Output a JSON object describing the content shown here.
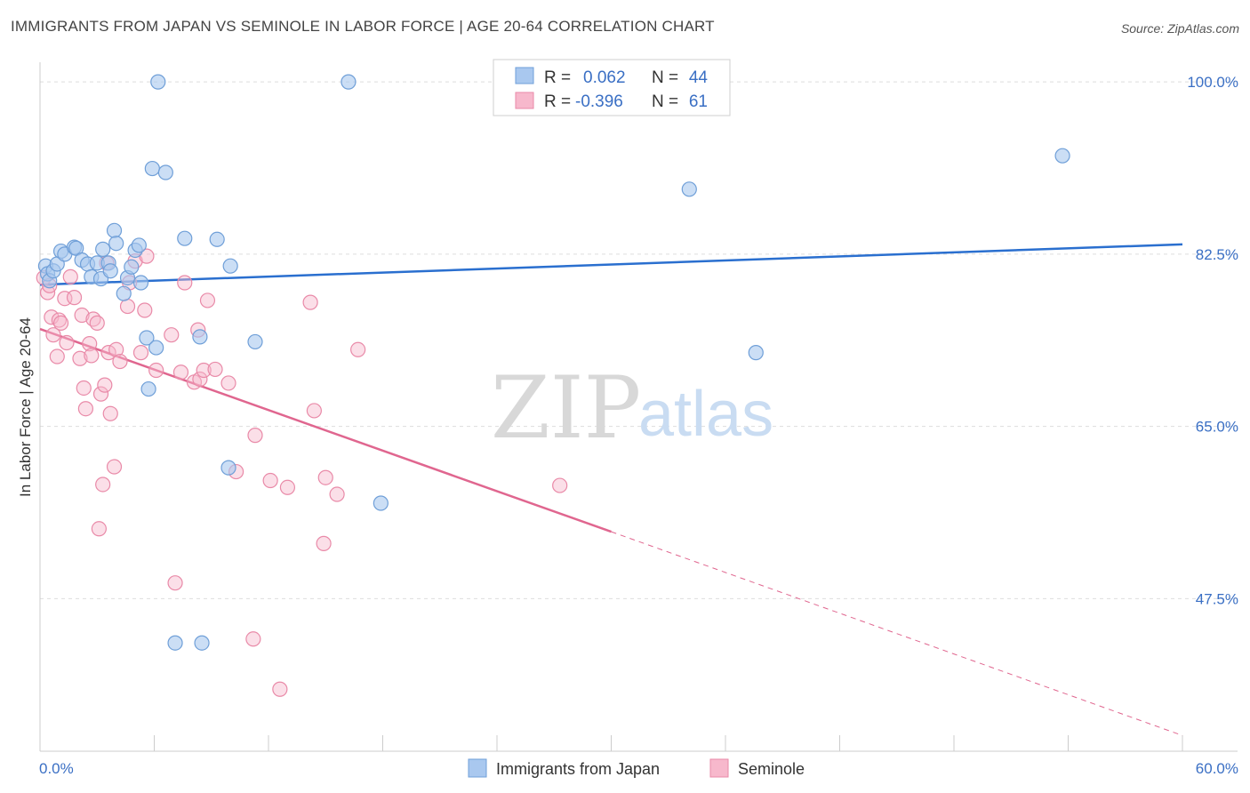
{
  "title": "IMMIGRANTS FROM JAPAN VS SEMINOLE IN LABOR FORCE | AGE 20-64 CORRELATION CHART",
  "source": "Source: ZipAtlas.com",
  "watermark": {
    "zip": "ZIP",
    "atlas": "atlas"
  },
  "colors": {
    "japan_fill": "#a9c8ef",
    "japan_stroke": "#6f9fd8",
    "japan_line": "#2a6fcf",
    "seminole_fill": "#f7b8cc",
    "seminole_stroke": "#e98aa8",
    "seminole_line": "#e0668f",
    "tick_text": "#3a6fc4",
    "grid": "#dddddd"
  },
  "legend": {
    "r_label": "R =",
    "n_label": "N =",
    "japan_r": "0.062",
    "japan_n": "44",
    "seminole_r": "-0.396",
    "seminole_n": "61"
  },
  "chart_data": {
    "type": "scatter",
    "title": "IMMIGRANTS FROM JAPAN VS SEMINOLE IN LABOR FORCE | AGE 20-64 CORRELATION CHART",
    "xlabel": "",
    "ylabel": "In Labor Force | Age 20-64",
    "xlim": [
      0,
      60
    ],
    "ylim": [
      32,
      102
    ],
    "x_tick_labels": [
      "0.0%",
      "60.0%"
    ],
    "y_ticks": [
      100.0,
      82.5,
      65.0,
      47.5
    ],
    "y_tick_labels": [
      "100.0%",
      "82.5%",
      "65.0%",
      "47.5%"
    ],
    "series": [
      {
        "name": "Immigrants from Japan",
        "color": "#a9c8ef",
        "trend": {
          "x": [
            0,
            60
          ],
          "y": [
            79.4,
            83.5
          ]
        },
        "points": [
          [
            0.3,
            81.3
          ],
          [
            0.4,
            80.5
          ],
          [
            0.5,
            79.8
          ],
          [
            0.7,
            80.8
          ],
          [
            0.9,
            81.5
          ],
          [
            1.1,
            82.8
          ],
          [
            1.3,
            82.5
          ],
          [
            1.8,
            83.2
          ],
          [
            1.9,
            83.1
          ],
          [
            2.2,
            81.9
          ],
          [
            2.5,
            81.5
          ],
          [
            2.7,
            80.2
          ],
          [
            3.0,
            81.6
          ],
          [
            3.2,
            80.0
          ],
          [
            3.3,
            83.0
          ],
          [
            3.6,
            81.6
          ],
          [
            3.7,
            80.8
          ],
          [
            3.9,
            84.9
          ],
          [
            4.0,
            83.6
          ],
          [
            4.4,
            78.5
          ],
          [
            4.6,
            80.1
          ],
          [
            4.8,
            81.2
          ],
          [
            5.0,
            82.9
          ],
          [
            5.2,
            83.4
          ],
          [
            5.3,
            79.6
          ],
          [
            5.6,
            74.0
          ],
          [
            5.7,
            68.8
          ],
          [
            5.9,
            91.2
          ],
          [
            6.1,
            73.0
          ],
          [
            6.2,
            100.0
          ],
          [
            6.6,
            90.8
          ],
          [
            7.1,
            43.0
          ],
          [
            7.6,
            84.1
          ],
          [
            8.4,
            74.1
          ],
          [
            8.5,
            43.0
          ],
          [
            9.3,
            84.0
          ],
          [
            9.9,
            60.8
          ],
          [
            10.0,
            81.3
          ],
          [
            11.3,
            73.6
          ],
          [
            16.2,
            100.0
          ],
          [
            17.9,
            57.2
          ],
          [
            34.1,
            89.1
          ],
          [
            37.6,
            72.5
          ],
          [
            53.7,
            92.5
          ]
        ]
      },
      {
        "name": "Seminole",
        "color": "#f7b8cc",
        "trend": {
          "x": [
            0,
            30
          ],
          "y": [
            74.9,
            54.3
          ]
        },
        "trend_dashed": {
          "x": [
            30,
            60
          ],
          "y": [
            54.3,
            33.6
          ]
        },
        "points": [
          [
            0.2,
            80.1
          ],
          [
            0.4,
            78.6
          ],
          [
            0.5,
            79.3
          ],
          [
            0.6,
            76.1
          ],
          [
            0.7,
            74.3
          ],
          [
            0.9,
            72.1
          ],
          [
            1.0,
            75.8
          ],
          [
            1.1,
            75.5
          ],
          [
            1.3,
            78.0
          ],
          [
            1.4,
            73.5
          ],
          [
            1.6,
            80.2
          ],
          [
            1.8,
            78.1
          ],
          [
            2.1,
            71.9
          ],
          [
            2.2,
            76.3
          ],
          [
            2.3,
            68.9
          ],
          [
            2.4,
            66.8
          ],
          [
            2.6,
            73.4
          ],
          [
            2.7,
            72.2
          ],
          [
            2.8,
            75.9
          ],
          [
            3.0,
            75.5
          ],
          [
            3.1,
            54.6
          ],
          [
            3.2,
            68.3
          ],
          [
            3.3,
            59.1
          ],
          [
            3.4,
            69.2
          ],
          [
            3.5,
            81.6
          ],
          [
            3.6,
            72.5
          ],
          [
            3.7,
            66.3
          ],
          [
            3.9,
            60.9
          ],
          [
            4.0,
            72.8
          ],
          [
            4.2,
            71.6
          ],
          [
            4.6,
            77.2
          ],
          [
            4.7,
            79.6
          ],
          [
            5.0,
            81.8
          ],
          [
            5.3,
            72.5
          ],
          [
            5.5,
            76.8
          ],
          [
            5.6,
            82.3
          ],
          [
            6.1,
            70.7
          ],
          [
            6.9,
            74.3
          ],
          [
            7.1,
            49.1
          ],
          [
            7.4,
            70.5
          ],
          [
            7.6,
            79.6
          ],
          [
            8.1,
            69.5
          ],
          [
            8.3,
            74.8
          ],
          [
            8.4,
            69.8
          ],
          [
            8.6,
            70.7
          ],
          [
            8.8,
            77.8
          ],
          [
            9.2,
            70.8
          ],
          [
            9.9,
            69.4
          ],
          [
            10.3,
            60.4
          ],
          [
            11.2,
            43.4
          ],
          [
            11.3,
            64.1
          ],
          [
            12.1,
            59.5
          ],
          [
            12.6,
            38.3
          ],
          [
            13.0,
            58.8
          ],
          [
            14.2,
            77.6
          ],
          [
            14.4,
            66.6
          ],
          [
            14.9,
            53.1
          ],
          [
            15.0,
            59.8
          ],
          [
            15.6,
            58.1
          ],
          [
            16.7,
            72.8
          ],
          [
            27.3,
            59.0
          ]
        ]
      }
    ]
  },
  "bottom_legend": {
    "japan_label": "Immigrants from Japan",
    "seminole_label": "Seminole"
  }
}
